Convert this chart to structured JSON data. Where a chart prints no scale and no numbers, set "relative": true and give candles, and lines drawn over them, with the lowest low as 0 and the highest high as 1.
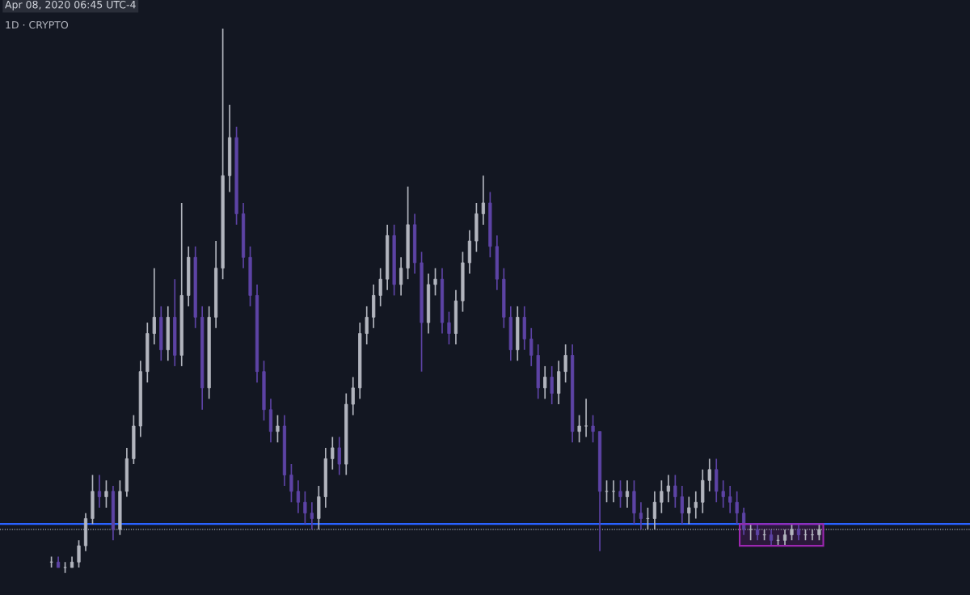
{
  "chart_data": {
    "type": "candlestick",
    "relative": true,
    "annotations": [
      "Apr 08, 2020 06:45 UTC-4",
      "1D · CRYPTO"
    ],
    "categories": [
      null,
      null,
      null,
      null,
      null,
      null,
      null,
      null,
      null,
      null,
      null,
      null,
      null,
      null,
      null,
      null,
      null,
      null,
      null,
      null,
      null,
      null,
      null,
      null,
      null,
      null,
      null,
      null,
      null,
      null,
      null,
      null,
      null,
      null,
      null,
      null,
      null,
      null,
      null,
      null,
      null,
      null,
      null,
      null,
      null,
      null,
      null,
      null,
      null,
      null,
      null,
      null,
      null,
      null,
      null,
      null,
      null,
      null,
      null,
      null,
      null,
      null,
      null,
      null,
      null,
      null,
      null,
      null,
      null,
      null,
      null,
      null,
      null,
      null,
      null,
      null,
      null,
      null,
      null,
      null,
      null,
      null,
      null,
      null,
      null,
      null,
      null,
      null,
      null,
      null,
      null,
      null,
      null,
      null,
      null,
      null,
      null,
      null,
      null,
      null,
      null,
      null,
      null,
      null,
      null,
      null,
      null,
      null,
      null,
      null,
      null,
      null,
      null
    ],
    "ohlc": [
      [
        0.02,
        0.03,
        0.01,
        0.02
      ],
      [
        0.02,
        0.03,
        0.01,
        0.01
      ],
      [
        0.01,
        0.02,
        0.0,
        0.01
      ],
      [
        0.01,
        0.03,
        0.01,
        0.02
      ],
      [
        0.02,
        0.06,
        0.01,
        0.05
      ],
      [
        0.05,
        0.11,
        0.04,
        0.1
      ],
      [
        0.1,
        0.18,
        0.09,
        0.15
      ],
      [
        0.15,
        0.18,
        0.12,
        0.14
      ],
      [
        0.14,
        0.17,
        0.12,
        0.15
      ],
      [
        0.15,
        0.16,
        0.06,
        0.08
      ],
      [
        0.08,
        0.17,
        0.07,
        0.15
      ],
      [
        0.15,
        0.23,
        0.14,
        0.21
      ],
      [
        0.21,
        0.29,
        0.2,
        0.27
      ],
      [
        0.27,
        0.39,
        0.25,
        0.37
      ],
      [
        0.37,
        0.46,
        0.35,
        0.44
      ],
      [
        0.44,
        0.56,
        0.42,
        0.47
      ],
      [
        0.47,
        0.49,
        0.39,
        0.41
      ],
      [
        0.41,
        0.49,
        0.39,
        0.47
      ],
      [
        0.47,
        0.54,
        0.38,
        0.4
      ],
      [
        0.4,
        0.68,
        0.38,
        0.51
      ],
      [
        0.51,
        0.6,
        0.49,
        0.58
      ],
      [
        0.58,
        0.6,
        0.45,
        0.47
      ],
      [
        0.47,
        0.49,
        0.3,
        0.34
      ],
      [
        0.34,
        0.49,
        0.32,
        0.47
      ],
      [
        0.47,
        0.61,
        0.45,
        0.56
      ],
      [
        0.56,
        1.0,
        0.54,
        0.73
      ],
      [
        0.73,
        0.86,
        0.7,
        0.8
      ],
      [
        0.8,
        0.82,
        0.64,
        0.66
      ],
      [
        0.66,
        0.68,
        0.56,
        0.58
      ],
      [
        0.58,
        0.6,
        0.49,
        0.51
      ],
      [
        0.51,
        0.53,
        0.35,
        0.37
      ],
      [
        0.37,
        0.39,
        0.28,
        0.3
      ],
      [
        0.3,
        0.32,
        0.24,
        0.26
      ],
      [
        0.26,
        0.29,
        0.24,
        0.27
      ],
      [
        0.27,
        0.29,
        0.16,
        0.18
      ],
      [
        0.18,
        0.2,
        0.13,
        0.15
      ],
      [
        0.15,
        0.17,
        0.11,
        0.13
      ],
      [
        0.13,
        0.15,
        0.09,
        0.11
      ],
      [
        0.11,
        0.13,
        0.08,
        0.1
      ],
      [
        0.1,
        0.16,
        0.08,
        0.14
      ],
      [
        0.14,
        0.23,
        0.12,
        0.21
      ],
      [
        0.21,
        0.25,
        0.19,
        0.23
      ],
      [
        0.23,
        0.25,
        0.18,
        0.2
      ],
      [
        0.2,
        0.33,
        0.18,
        0.31
      ],
      [
        0.31,
        0.36,
        0.29,
        0.34
      ],
      [
        0.34,
        0.46,
        0.32,
        0.44
      ],
      [
        0.44,
        0.49,
        0.42,
        0.47
      ],
      [
        0.47,
        0.53,
        0.45,
        0.51
      ],
      [
        0.51,
        0.56,
        0.49,
        0.54
      ],
      [
        0.54,
        0.64,
        0.52,
        0.62
      ],
      [
        0.62,
        0.64,
        0.51,
        0.53
      ],
      [
        0.53,
        0.58,
        0.51,
        0.56
      ],
      [
        0.56,
        0.71,
        0.54,
        0.64
      ],
      [
        0.64,
        0.66,
        0.55,
        0.57
      ],
      [
        0.57,
        0.59,
        0.37,
        0.46
      ],
      [
        0.46,
        0.55,
        0.44,
        0.53
      ],
      [
        0.53,
        0.56,
        0.51,
        0.54
      ],
      [
        0.54,
        0.56,
        0.44,
        0.46
      ],
      [
        0.46,
        0.48,
        0.42,
        0.44
      ],
      [
        0.44,
        0.52,
        0.42,
        0.5
      ],
      [
        0.5,
        0.59,
        0.48,
        0.57
      ],
      [
        0.57,
        0.63,
        0.55,
        0.61
      ],
      [
        0.61,
        0.68,
        0.59,
        0.66
      ],
      [
        0.66,
        0.73,
        0.64,
        0.68
      ],
      [
        0.68,
        0.7,
        0.58,
        0.6
      ],
      [
        0.6,
        0.62,
        0.52,
        0.54
      ],
      [
        0.54,
        0.56,
        0.45,
        0.47
      ],
      [
        0.47,
        0.49,
        0.39,
        0.41
      ],
      [
        0.41,
        0.49,
        0.39,
        0.47
      ],
      [
        0.47,
        0.49,
        0.41,
        0.43
      ],
      [
        0.43,
        0.45,
        0.38,
        0.4
      ],
      [
        0.4,
        0.42,
        0.32,
        0.34
      ],
      [
        0.34,
        0.38,
        0.32,
        0.36
      ],
      [
        0.36,
        0.38,
        0.31,
        0.33
      ],
      [
        0.33,
        0.39,
        0.31,
        0.37
      ],
      [
        0.37,
        0.42,
        0.35,
        0.4
      ],
      [
        0.4,
        0.42,
        0.24,
        0.26
      ],
      [
        0.26,
        0.29,
        0.24,
        0.27
      ],
      [
        0.27,
        0.32,
        0.25,
        0.27
      ],
      [
        0.27,
        0.29,
        0.24,
        0.26
      ],
      [
        0.26,
        0.26,
        0.04,
        0.15
      ],
      [
        0.15,
        0.17,
        0.13,
        0.15
      ],
      [
        0.15,
        0.17,
        0.13,
        0.15
      ],
      [
        0.15,
        0.17,
        0.12,
        0.14
      ],
      [
        0.14,
        0.17,
        0.12,
        0.15
      ],
      [
        0.15,
        0.17,
        0.09,
        0.11
      ],
      [
        0.11,
        0.13,
        0.08,
        0.1
      ],
      [
        0.1,
        0.12,
        0.08,
        0.1
      ],
      [
        0.1,
        0.15,
        0.08,
        0.13
      ],
      [
        0.13,
        0.17,
        0.11,
        0.15
      ],
      [
        0.15,
        0.18,
        0.13,
        0.16
      ],
      [
        0.16,
        0.18,
        0.12,
        0.14
      ],
      [
        0.14,
        0.16,
        0.09,
        0.11
      ],
      [
        0.11,
        0.14,
        0.09,
        0.12
      ],
      [
        0.12,
        0.15,
        0.1,
        0.13
      ],
      [
        0.13,
        0.19,
        0.11,
        0.17
      ],
      [
        0.17,
        0.21,
        0.15,
        0.19
      ],
      [
        0.19,
        0.21,
        0.13,
        0.15
      ],
      [
        0.15,
        0.17,
        0.12,
        0.14
      ],
      [
        0.14,
        0.16,
        0.11,
        0.13
      ],
      [
        0.13,
        0.15,
        0.09,
        0.11
      ],
      [
        0.11,
        0.12,
        0.07,
        0.08
      ],
      [
        0.08,
        0.09,
        0.06,
        0.08
      ],
      [
        0.08,
        0.09,
        0.06,
        0.07
      ],
      [
        0.07,
        0.08,
        0.06,
        0.07
      ],
      [
        0.07,
        0.08,
        0.05,
        0.06
      ],
      [
        0.06,
        0.07,
        0.05,
        0.06
      ],
      [
        0.06,
        0.08,
        0.05,
        0.07
      ],
      [
        0.07,
        0.09,
        0.06,
        0.08
      ],
      [
        0.08,
        0.09,
        0.06,
        0.07
      ],
      [
        0.07,
        0.08,
        0.06,
        0.07
      ],
      [
        0.07,
        0.08,
        0.06,
        0.07
      ],
      [
        0.07,
        0.09,
        0.06,
        0.08
      ]
    ],
    "colors": [
      "#b2b5be",
      "#5d43a5",
      "#b2b5be",
      "#b2b5be",
      "#b2b5be",
      "#b2b5be",
      "#b2b5be",
      "#5d43a5",
      "#b2b5be",
      "#5d43a5",
      "#b2b5be",
      "#b2b5be",
      "#b2b5be",
      "#b2b5be",
      "#b2b5be",
      "#b2b5be",
      "#5d43a5",
      "#b2b5be",
      "#5d43a5",
      "#b2b5be",
      "#b2b5be",
      "#5d43a5",
      "#5d43a5",
      "#b2b5be",
      "#b2b5be",
      "#b2b5be",
      "#b2b5be",
      "#5d43a5",
      "#5d43a5",
      "#5d43a5",
      "#5d43a5",
      "#5d43a5",
      "#5d43a5",
      "#b2b5be",
      "#5d43a5",
      "#5d43a5",
      "#5d43a5",
      "#5d43a5",
      "#5d43a5",
      "#b2b5be",
      "#b2b5be",
      "#b2b5be",
      "#5d43a5",
      "#b2b5be",
      "#b2b5be",
      "#b2b5be",
      "#b2b5be",
      "#b2b5be",
      "#b2b5be",
      "#b2b5be",
      "#5d43a5",
      "#b2b5be",
      "#b2b5be",
      "#5d43a5",
      "#5d43a5",
      "#b2b5be",
      "#b2b5be",
      "#5d43a5",
      "#5d43a5",
      "#b2b5be",
      "#b2b5be",
      "#b2b5be",
      "#b2b5be",
      "#b2b5be",
      "#5d43a5",
      "#5d43a5",
      "#5d43a5",
      "#5d43a5",
      "#b2b5be",
      "#5d43a5",
      "#5d43a5",
      "#5d43a5",
      "#b2b5be",
      "#5d43a5",
      "#b2b5be",
      "#b2b5be",
      "#5d43a5",
      "#b2b5be",
      "#b2b5be",
      "#5d43a5",
      "#5d43a5",
      "#b2b5be",
      "#b2b5be",
      "#5d43a5",
      "#b2b5be",
      "#5d43a5",
      "#5d43a5",
      "#b2b5be",
      "#b2b5be",
      "#b2b5be",
      "#b2b5be",
      "#5d43a5",
      "#5d43a5",
      "#b2b5be",
      "#b2b5be",
      "#b2b5be",
      "#b2b5be",
      "#5d43a5",
      "#5d43a5",
      "#5d43a5",
      "#5d43a5",
      "#5d43a5",
      "#b2b5be",
      "#5d43a5",
      "#b2b5be",
      "#5d43a5",
      "#b2b5be",
      "#b2b5be",
      "#b2b5be",
      "#5d43a5",
      "#b2b5be",
      "#b2b5be",
      "#b2b5be"
    ],
    "ref_lines": [
      {
        "axis": "y",
        "value": 0.09,
        "color": "#2962ff",
        "line_style": "solid"
      },
      {
        "axis": "y",
        "value": 0.08,
        "color": "#b2b5be",
        "line_style": "dotted"
      }
    ],
    "bands": [
      {
        "axis": "y",
        "from": 0.05,
        "to": 0.09,
        "color": "#9c27b0"
      }
    ]
  }
}
